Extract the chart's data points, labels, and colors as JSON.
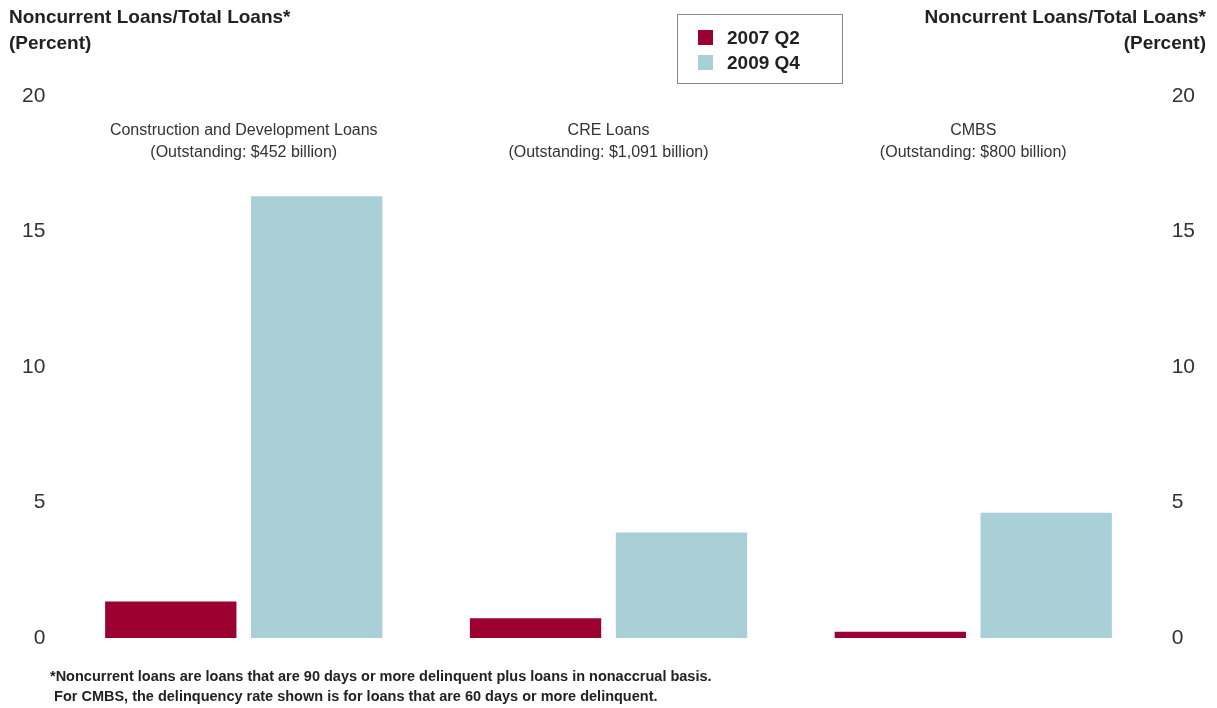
{
  "chart_data": {
    "type": "bar",
    "ylabel": "Noncurrent Loans/Total Loans*\n(Percent)",
    "y2label": "Noncurrent Loans/Total Loans*\n(Percent)",
    "categories": [
      "Construction and Development Loans\n(Outstanding: $452 billion)",
      "CRE Loans\n(Outstanding: $1,091 billion)",
      "CMBS\n(Outstanding: $800 billion)"
    ],
    "series": [
      {
        "name": "2007 Q2",
        "color": "#9b0030",
        "values": [
          1.35,
          0.73,
          0.23
        ]
      },
      {
        "name": "2009 Q4",
        "color": "#a8d0d6",
        "values": [
          16.3,
          3.89,
          4.62
        ]
      }
    ],
    "ylim": [
      0,
      20
    ],
    "yticks": [
      0,
      5,
      10,
      15,
      20
    ],
    "y2lim": [
      0,
      20
    ],
    "y2ticks": [
      0,
      5,
      10,
      15,
      20
    ],
    "grid": false,
    "legend": "top right",
    "annotations": [
      "*Noncurrent loans are loans that are 90 days or more delinquent plus loans in nonaccrual basis.\n For CMBS, the delinquency rate shown is for loans that are 60 days or more delinquent."
    ]
  }
}
